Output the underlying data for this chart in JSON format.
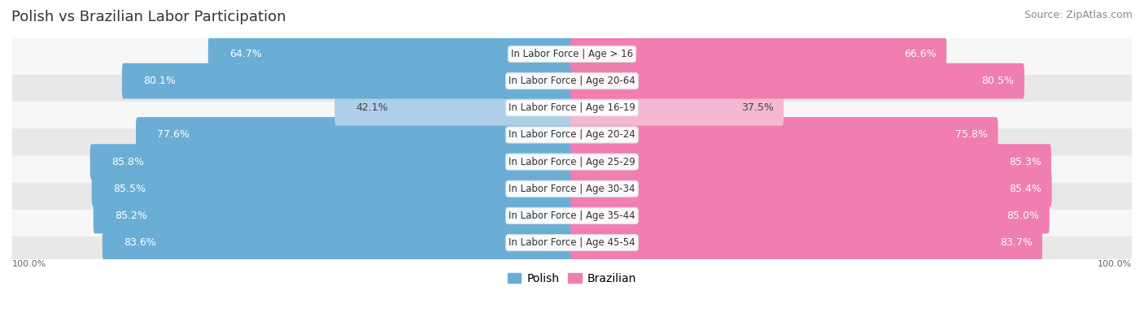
{
  "title": "Polish vs Brazilian Labor Participation",
  "source": "Source: ZipAtlas.com",
  "categories": [
    "In Labor Force | Age > 16",
    "In Labor Force | Age 20-64",
    "In Labor Force | Age 16-19",
    "In Labor Force | Age 20-24",
    "In Labor Force | Age 25-29",
    "In Labor Force | Age 30-34",
    "In Labor Force | Age 35-44",
    "In Labor Force | Age 45-54"
  ],
  "polish_values": [
    64.7,
    80.1,
    42.1,
    77.6,
    85.8,
    85.5,
    85.2,
    83.6
  ],
  "brazilian_values": [
    66.6,
    80.5,
    37.5,
    75.8,
    85.3,
    85.4,
    85.0,
    83.7
  ],
  "polish_color": "#6aaed6",
  "polish_light_color": "#aecfe8",
  "brazilian_color": "#f07eb0",
  "brazilian_light_color": "#f5b8d2",
  "row_bg_color": "#e8e8e8",
  "row_bg_alt_color": "#f7f7f7",
  "title_fontsize": 13,
  "source_fontsize": 9,
  "bar_label_fontsize": 9,
  "category_label_fontsize": 8.5,
  "legend_fontsize": 10,
  "axis_label_fontsize": 8,
  "max_value": 100.0,
  "legend_labels": [
    "Polish",
    "Brazilian"
  ],
  "axis_labels_left": "100.0%",
  "axis_labels_right": "100.0%"
}
